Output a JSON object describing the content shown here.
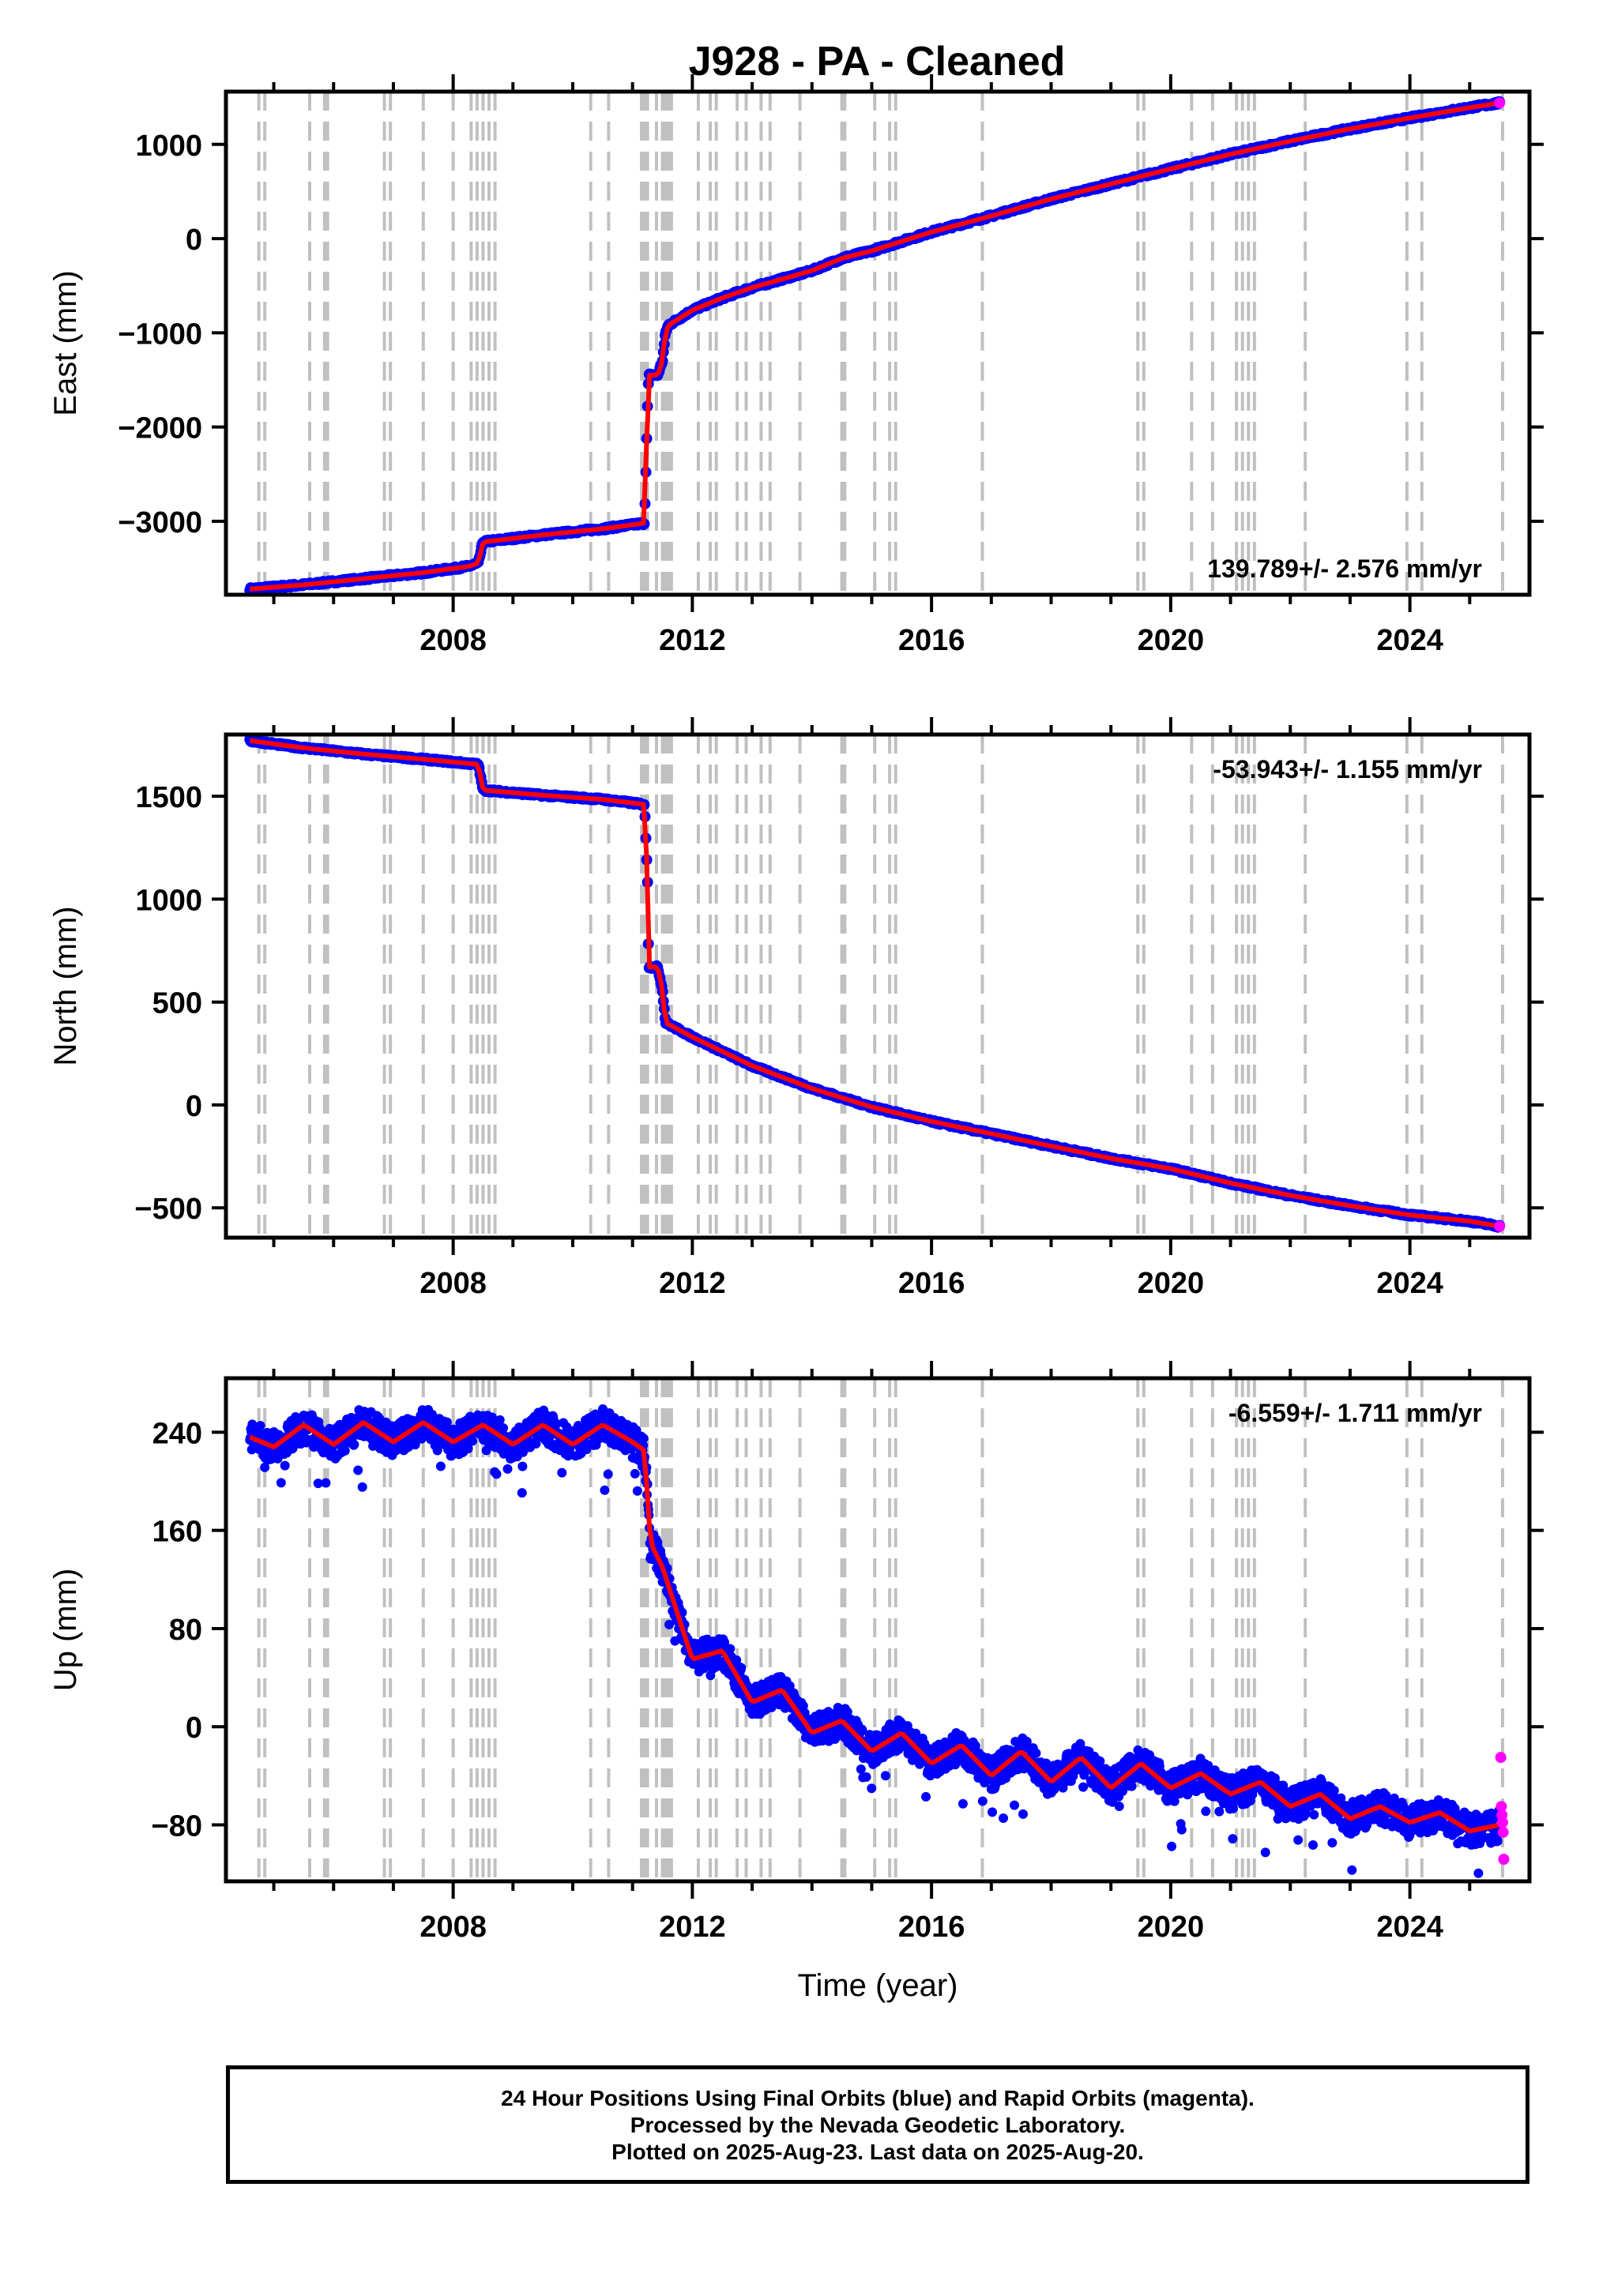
{
  "page": {
    "title": "J928  - PA - Cleaned",
    "colors": {
      "final": "#0000ff",
      "rapid": "#ff00ff",
      "model": "#ff0000",
      "steps": "#c0c0c0",
      "frame": "#000000"
    },
    "footer_lines": [
      "24 Hour Positions Using Final Orbits (blue) and Rapid Orbits (magenta).",
      "Processed by the Nevada Geodetic Laboratory.",
      "Plotted on 2025-Aug-23. Last data on 2025-Aug-20."
    ]
  },
  "chart_data": [
    {
      "type": "scatter",
      "title": "J928  - PA - Cleaned",
      "ylabel": "East (mm)",
      "xlabel": "",
      "rate_label": "139.789+/- 2.576 mm/yr",
      "rate_position": "bottom-right",
      "xlim": [
        2004.2,
        2026.0
      ],
      "ylim": [
        -3780,
        1560
      ],
      "xticks": [
        2008,
        2012,
        2016,
        2020,
        2024
      ],
      "yticks": [
        -3000,
        -2000,
        -1000,
        0,
        1000
      ],
      "series": [
        {
          "role": "final",
          "x": [
            2004.6,
            2005.5,
            2006.5,
            2007.5,
            2008.25,
            2008.42,
            2008.5,
            2009.5,
            2010.5,
            2011.2,
            2011.25,
            2011.27,
            2011.42,
            2011.5,
            2011.55,
            2011.6,
            2012.0,
            2012.5,
            2013.0,
            2014.0,
            2014.5,
            2015.0,
            2016.0,
            2017.0,
            2018.0,
            2019.0,
            2020.0,
            2021.0,
            2022.0,
            2023.0,
            2024.0,
            2025.0,
            2025.5
          ],
          "y": [
            -3720,
            -3675,
            -3610,
            -3545,
            -3480,
            -3445,
            -3220,
            -3145,
            -3080,
            -3020,
            -1800,
            -1450,
            -1450,
            -1300,
            -1000,
            -920,
            -760,
            -630,
            -520,
            -340,
            -210,
            -130,
            70,
            240,
            420,
            580,
            740,
            895,
            1035,
            1165,
            1280,
            1390,
            1440
          ]
        },
        {
          "role": "rapid",
          "x": [
            2025.5
          ],
          "y": [
            1440
          ]
        }
      ],
      "steps": [
        2004.75,
        2004.85,
        2005.6,
        2005.85,
        2005.9,
        2006.85,
        2006.95,
        2007.5,
        2008.0,
        2008.3,
        2008.4,
        2008.5,
        2008.6,
        2008.7,
        2010.3,
        2010.6,
        2011.15,
        2011.2,
        2011.25,
        2011.4,
        2011.5,
        2011.55,
        2011.6,
        2011.65,
        2012.1,
        2012.3,
        2012.4,
        2012.75,
        2012.9,
        2013.15,
        2013.3,
        2013.8,
        2014.5,
        2014.55,
        2015.05,
        2015.3,
        2015.4,
        2016.85,
        2019.45,
        2019.55,
        2020.35,
        2020.7,
        2021.1,
        2021.2,
        2021.3,
        2021.4,
        2022.25,
        2023.95,
        2024.2,
        2025.55
      ]
    },
    {
      "type": "scatter",
      "ylabel": "North (mm)",
      "xlabel": "",
      "rate_label": "-53.943+/- 1.155 mm/yr",
      "rate_position": "top-right",
      "xlim": [
        2004.2,
        2026.0
      ],
      "ylim": [
        -645,
        1800
      ],
      "xticks": [
        2008,
        2012,
        2016,
        2020,
        2024
      ],
      "yticks": [
        -500,
        0,
        500,
        1000,
        1500
      ],
      "series": [
        {
          "role": "final",
          "x": [
            2004.6,
            2005.5,
            2006.5,
            2007.5,
            2008.42,
            2008.5,
            2009.5,
            2010.5,
            2011.2,
            2011.25,
            2011.27,
            2011.42,
            2011.5,
            2011.55,
            2012.0,
            2013.0,
            2014.0,
            2015.0,
            2016.0,
            2017.0,
            2018.0,
            2019.0,
            2020.0,
            2021.0,
            2022.0,
            2023.0,
            2024.0,
            2025.0,
            2025.5
          ],
          "y": [
            1770,
            1735,
            1705,
            1680,
            1655,
            1530,
            1505,
            1485,
            1460,
            1100,
            670,
            670,
            560,
            400,
            330,
            190,
            80,
            -10,
            -80,
            -140,
            -200,
            -260,
            -310,
            -380,
            -440,
            -490,
            -535,
            -565,
            -590
          ]
        },
        {
          "role": "rapid",
          "x": [
            2025.5
          ],
          "y": [
            -590
          ]
        }
      ],
      "steps": [
        2004.75,
        2004.85,
        2005.6,
        2005.85,
        2005.9,
        2006.85,
        2006.95,
        2007.5,
        2008.0,
        2008.3,
        2008.4,
        2008.5,
        2008.6,
        2008.7,
        2010.3,
        2010.6,
        2011.15,
        2011.2,
        2011.25,
        2011.4,
        2011.5,
        2011.55,
        2011.6,
        2011.65,
        2012.1,
        2012.3,
        2012.4,
        2012.75,
        2012.9,
        2013.15,
        2013.3,
        2013.8,
        2014.5,
        2014.55,
        2015.05,
        2015.3,
        2015.4,
        2016.85,
        2019.45,
        2019.55,
        2020.35,
        2020.7,
        2021.1,
        2021.2,
        2021.3,
        2021.4,
        2022.25,
        2023.95,
        2024.2,
        2025.55
      ]
    },
    {
      "type": "scatter",
      "ylabel": "Up (mm)",
      "xlabel": "Time (year)",
      "rate_label": "-6.559+/- 1.711 mm/yr",
      "rate_position": "top-right",
      "xlim": [
        2004.2,
        2026.0
      ],
      "ylim": [
        -126,
        284
      ],
      "xticks": [
        2008,
        2012,
        2016,
        2020,
        2024
      ],
      "yticks": [
        -80,
        0,
        80,
        160,
        240
      ],
      "series": [
        {
          "role": "final",
          "x": [
            2004.6,
            2005.0,
            2005.5,
            2006.0,
            2006.5,
            2007.0,
            2007.5,
            2008.0,
            2008.5,
            2009.0,
            2009.5,
            2010.0,
            2010.5,
            2011.0,
            2011.2,
            2011.3,
            2011.5,
            2011.7,
            2012.0,
            2012.5,
            2013.0,
            2013.5,
            2014.0,
            2014.5,
            2015.0,
            2015.5,
            2016.0,
            2016.5,
            2017.0,
            2017.5,
            2018.0,
            2018.5,
            2019.0,
            2019.5,
            2020.0,
            2020.5,
            2021.0,
            2021.5,
            2022.0,
            2022.5,
            2023.0,
            2023.5,
            2024.0,
            2024.5,
            2025.0,
            2025.5
          ],
          "y": [
            236,
            228,
            246,
            230,
            248,
            232,
            248,
            232,
            246,
            230,
            246,
            230,
            246,
            232,
            225,
            150,
            130,
            100,
            55,
            62,
            20,
            30,
            -5,
            5,
            -20,
            -5,
            -30,
            -15,
            -40,
            -20,
            -45,
            -25,
            -50,
            -30,
            -50,
            -38,
            -55,
            -45,
            -65,
            -55,
            -75,
            -65,
            -78,
            -70,
            -85,
            -80
          ]
        },
        {
          "role": "rapid",
          "x": [
            2025.52,
            2025.53,
            2025.54,
            2025.55,
            2025.56,
            2025.57
          ],
          "y": [
            -25,
            -65,
            -72,
            -78,
            -86,
            -108
          ]
        }
      ],
      "steps": [
        2004.75,
        2004.85,
        2005.6,
        2005.85,
        2005.9,
        2006.85,
        2006.95,
        2007.5,
        2008.0,
        2008.3,
        2008.4,
        2008.5,
        2008.6,
        2008.7,
        2010.3,
        2010.6,
        2011.15,
        2011.2,
        2011.25,
        2011.4,
        2011.5,
        2011.55,
        2011.6,
        2011.65,
        2012.1,
        2012.3,
        2012.4,
        2012.75,
        2012.9,
        2013.15,
        2013.3,
        2013.8,
        2014.5,
        2014.55,
        2015.05,
        2015.3,
        2015.4,
        2016.85,
        2019.45,
        2019.55,
        2020.35,
        2020.7,
        2021.1,
        2021.2,
        2021.3,
        2021.4,
        2022.25,
        2023.95,
        2024.2,
        2025.55
      ]
    }
  ]
}
